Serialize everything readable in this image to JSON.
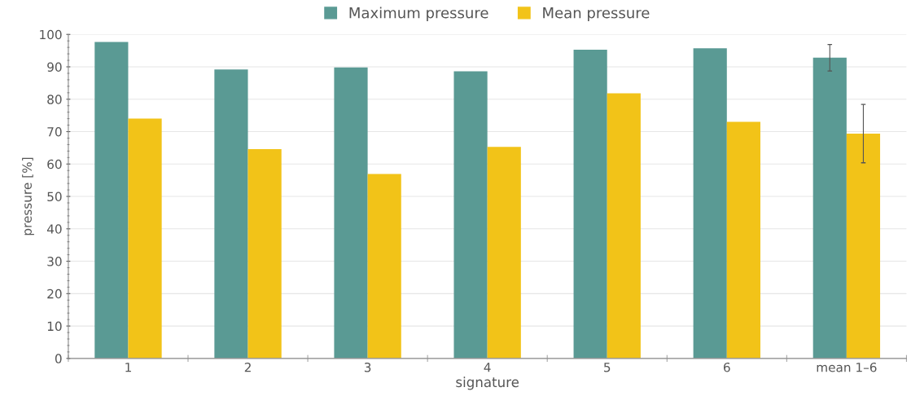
{
  "chart_data": {
    "type": "bar",
    "xlabel": "signature",
    "ylabel": "pressure [%]",
    "categories": [
      "1",
      "2",
      "3",
      "4",
      "5",
      "6",
      "mean 1–6"
    ],
    "series": [
      {
        "name": "Maximum pressure",
        "color": "#5a9a94",
        "values": [
          97.7,
          89.2,
          89.8,
          88.6,
          95.3,
          95.7,
          92.8
        ],
        "errors": [
          null,
          null,
          null,
          null,
          null,
          null,
          4.1
        ]
      },
      {
        "name": "Mean pressure",
        "color": "#f2c318",
        "values": [
          74.0,
          64.6,
          56.9,
          65.3,
          81.8,
          73.0,
          69.4
        ],
        "errors": [
          null,
          null,
          null,
          null,
          null,
          null,
          9.0
        ]
      }
    ],
    "ylim": [
      0,
      100
    ],
    "yticks": [
      0,
      10,
      20,
      30,
      40,
      50,
      60,
      70,
      80,
      90,
      100
    ],
    "grid": "y",
    "legend": "top"
  }
}
